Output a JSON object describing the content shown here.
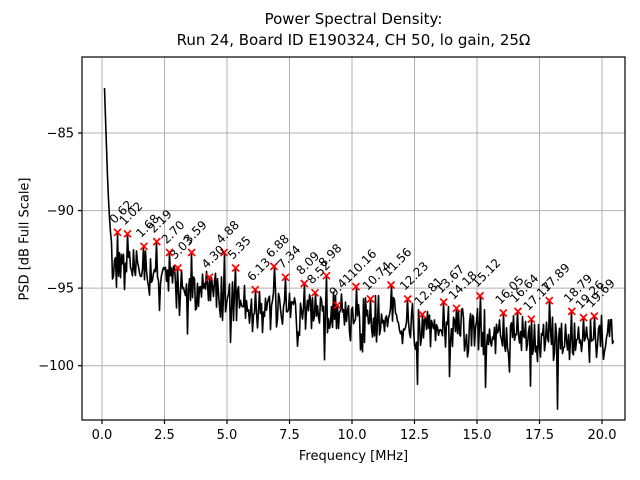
{
  "figure": {
    "title_line1": "Power Spectral Density:",
    "title_line2": "Run 24, Board ID E190324, CH 50, lo gain, 25Ω"
  },
  "chart_data": {
    "type": "line",
    "title": "Power Spectral Density: Run 24, Board ID E190324, CH 50, lo gain, 25Ω",
    "xlabel": "Frequency [MHz]",
    "ylabel": "PSD [dB Full Scale]",
    "xlim": [
      -0.8,
      20.92
    ],
    "ylim": [
      -103.5,
      -80.1
    ],
    "grid": true,
    "legend": "none",
    "xticks": [
      {
        "v": 0.0,
        "label": "0.0"
      },
      {
        "v": 2.5,
        "label": "2.5"
      },
      {
        "v": 5.0,
        "label": "5.0"
      },
      {
        "v": 7.5,
        "label": "7.5"
      },
      {
        "v": 10.0,
        "label": "10.0"
      },
      {
        "v": 12.5,
        "label": "12.5"
      },
      {
        "v": 15.0,
        "label": "15.0"
      },
      {
        "v": 17.5,
        "label": "17.5"
      },
      {
        "v": 20.0,
        "label": "20.0"
      }
    ],
    "yticks": [
      {
        "v": -85,
        "label": "−85"
      },
      {
        "v": -90,
        "label": "−90"
      },
      {
        "v": -95,
        "label": "−95"
      },
      {
        "v": -100,
        "label": "−100"
      }
    ],
    "colors": {
      "line": "#000000",
      "marker": "#ff0000",
      "grid": "#b0b0b0",
      "spine": "#000000"
    },
    "dc_spike_profile": [
      [
        0.1,
        -82.1
      ],
      [
        0.16,
        -85.0
      ],
      [
        0.22,
        -87.8
      ],
      [
        0.28,
        -90.0
      ],
      [
        0.34,
        -91.4
      ],
      [
        0.4,
        -92.4
      ]
    ],
    "noise_floor_trend": [
      [
        0.45,
        -93.2
      ],
      [
        1.3,
        -93.8
      ],
      [
        2.5,
        -94.4
      ],
      [
        4.0,
        -95.2
      ],
      [
        6.0,
        -95.9
      ],
      [
        8.0,
        -96.4
      ],
      [
        10.0,
        -96.9
      ],
      [
        12.0,
        -97.3
      ],
      [
        14.0,
        -97.7
      ],
      [
        16.0,
        -98.0
      ],
      [
        18.0,
        -98.2
      ],
      [
        20.4,
        -98.3
      ]
    ],
    "noise_amplitude_db": 1.8,
    "deep_dips": [
      [
        6.0,
        -97.8
      ],
      [
        10.5,
        -98.5
      ],
      [
        12.62,
        -101.2
      ],
      [
        13.9,
        -100.7
      ],
      [
        15.35,
        -101.4
      ],
      [
        16.3,
        -100.4
      ],
      [
        18.22,
        -102.8
      ]
    ],
    "peaks": [
      {
        "f": 0.62,
        "db": -91.4,
        "label": "0.62"
      },
      {
        "f": 1.02,
        "db": -91.5,
        "label": "1.02"
      },
      {
        "f": 1.68,
        "db": -92.3,
        "label": "1.68"
      },
      {
        "f": 2.19,
        "db": -92.0,
        "label": "2.19"
      },
      {
        "f": 2.7,
        "db": -92.7,
        "label": "2.70"
      },
      {
        "f": 3.03,
        "db": -93.7,
        "label": "3.03"
      },
      {
        "f": 3.59,
        "db": -92.7,
        "label": "3.59"
      },
      {
        "f": 4.3,
        "db": -94.3,
        "label": "4.30"
      },
      {
        "f": 4.88,
        "db": -92.7,
        "label": "4.88"
      },
      {
        "f": 5.35,
        "db": -93.7,
        "label": "5.35"
      },
      {
        "f": 6.13,
        "db": -95.1,
        "label": "6.13"
      },
      {
        "f": 6.88,
        "db": -93.6,
        "label": "6.88"
      },
      {
        "f": 7.34,
        "db": -94.3,
        "label": "7.34"
      },
      {
        "f": 8.09,
        "db": -94.7,
        "label": "8.09"
      },
      {
        "f": 8.52,
        "db": -95.3,
        "label": "8.52"
      },
      {
        "f": 8.98,
        "db": -94.2,
        "label": "8.98"
      },
      {
        "f": 9.41,
        "db": -96.1,
        "label": "9.41"
      },
      {
        "f": 10.16,
        "db": -94.9,
        "label": "10.16"
      },
      {
        "f": 10.74,
        "db": -95.7,
        "label": "10.74"
      },
      {
        "f": 11.56,
        "db": -94.8,
        "label": "11.56"
      },
      {
        "f": 12.23,
        "db": -95.7,
        "label": "12.23"
      },
      {
        "f": 12.81,
        "db": -96.7,
        "label": "12.81"
      },
      {
        "f": 13.67,
        "db": -95.9,
        "label": "13.67"
      },
      {
        "f": 14.18,
        "db": -96.3,
        "label": "14.18"
      },
      {
        "f": 15.12,
        "db": -95.5,
        "label": "15.12"
      },
      {
        "f": 16.05,
        "db": -96.6,
        "label": "16.05"
      },
      {
        "f": 16.64,
        "db": -96.5,
        "label": "16.64"
      },
      {
        "f": 17.17,
        "db": -97.0,
        "label": "17.17"
      },
      {
        "f": 17.89,
        "db": -95.8,
        "label": "17.89"
      },
      {
        "f": 18.79,
        "db": -96.5,
        "label": "18.79"
      },
      {
        "f": 19.26,
        "db": -96.9,
        "label": "19.26"
      },
      {
        "f": 19.69,
        "db": -96.8,
        "label": "19.69"
      }
    ]
  }
}
